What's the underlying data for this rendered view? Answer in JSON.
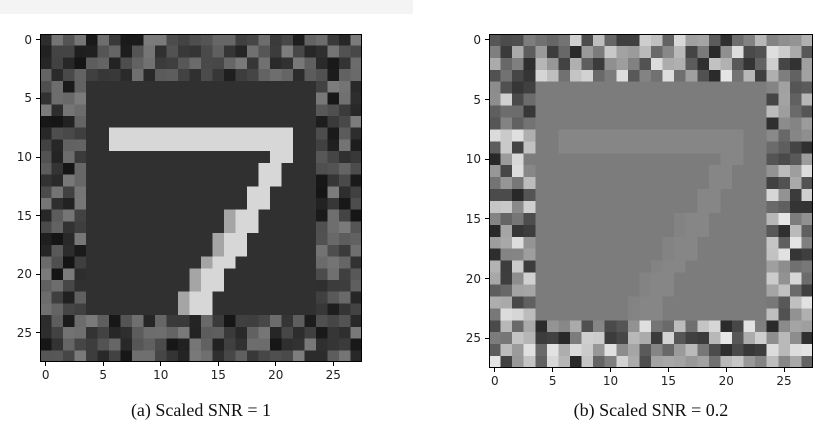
{
  "figure": {
    "panels": [
      {
        "caption": "(a)  Scaled SNR = 1",
        "chart_data": {
          "type": "heatmap",
          "rows": 28,
          "cols": 28,
          "colormap": "gray",
          "xlim": [
            -0.5,
            27.5
          ],
          "ylim": [
            27.5,
            -0.5
          ],
          "x_ticks": [
            0,
            5,
            10,
            15,
            20,
            25
          ],
          "y_ticks": [
            0,
            5,
            10,
            15,
            20,
            25
          ],
          "x_tick_labels": [
            "0",
            "5",
            "10",
            "15",
            "20",
            "25"
          ],
          "y_tick_labels": [
            "0",
            "5",
            "10",
            "15",
            "20",
            "25"
          ],
          "noise_border_width": 4,
          "noise_level": [
            20,
            125
          ],
          "interior_level": 48,
          "digit_level": 215,
          "digit": "7",
          "seed": 7
        }
      },
      {
        "caption": "(b)  Scaled SNR = 0.2",
        "chart_data": {
          "type": "heatmap",
          "rows": 28,
          "cols": 28,
          "colormap": "gray",
          "xlim": [
            -0.5,
            27.5
          ],
          "ylim": [
            27.5,
            -0.5
          ],
          "x_ticks": [
            0,
            5,
            10,
            15,
            20,
            25
          ],
          "y_ticks": [
            0,
            5,
            10,
            15,
            20,
            25
          ],
          "x_tick_labels": [
            "0",
            "5",
            "10",
            "15",
            "20",
            "25"
          ],
          "y_tick_labels": [
            "0",
            "5",
            "10",
            "15",
            "20",
            "25"
          ],
          "noise_border_width": 4,
          "noise_level": [
            40,
            230
          ],
          "interior_level": 124,
          "digit_level": 134,
          "digit": "7",
          "seed": 21
        }
      }
    ]
  }
}
